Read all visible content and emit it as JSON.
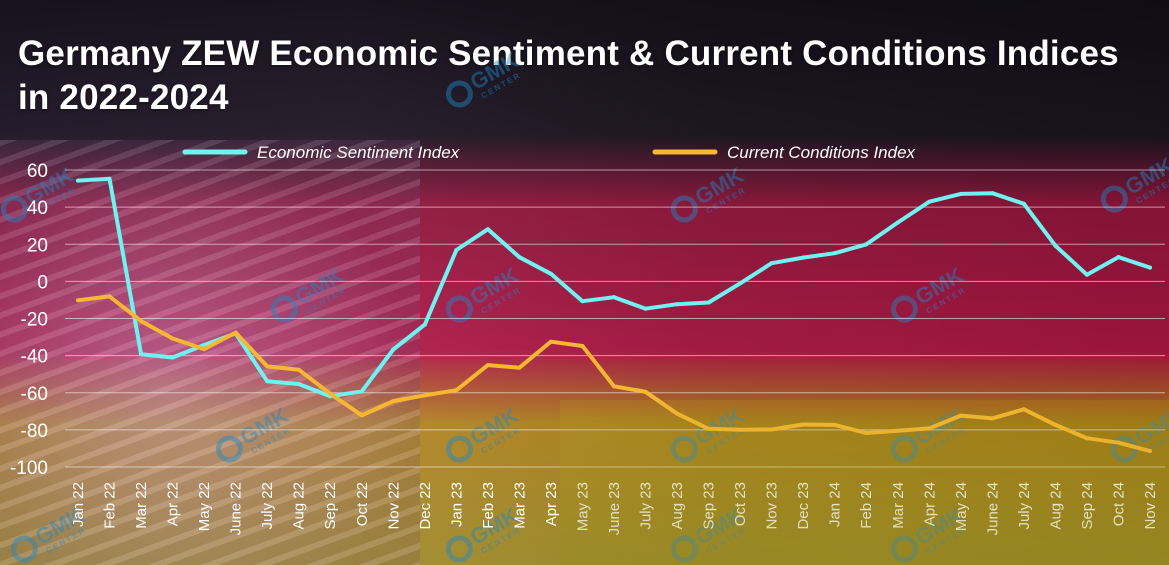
{
  "chart_data": {
    "type": "line",
    "title": "Germany ZEW Economic Sentiment & Current Conditions Indices in 2022-2024",
    "categories": [
      "Jan 22",
      "Feb 22",
      "Mar 22",
      "Apr 22",
      "May 22",
      "June 22",
      "July 22",
      "Aug 22",
      "Sep 22",
      "Oct 22",
      "Nov 22",
      "Dec 22",
      "Jan 23",
      "Feb 23",
      "Mar 23",
      "Apr 23",
      "May 23",
      "June 23",
      "July 23",
      "Aug 23",
      "Sep 23",
      "Oct 23",
      "Nov 23",
      "Dec 23",
      "Jan 24",
      "Feb 24",
      "Mar 24",
      "Apr 24",
      "May 24",
      "June 24",
      "July 24",
      "Aug 24",
      "Sep 24",
      "Oct 24",
      "Nov 24"
    ],
    "series": [
      {
        "name": "Economic Sentiment Index",
        "color": "#6ff3f0",
        "values": [
          54.3,
          55.3,
          -39.3,
          -41.0,
          -34.3,
          -28.0,
          -53.8,
          -55.3,
          -61.9,
          -59.2,
          -36.7,
          -23.3,
          16.9,
          28.1,
          13.0,
          4.1,
          -10.7,
          -8.5,
          -14.7,
          -12.3,
          -11.4,
          -1.1,
          9.8,
          12.8,
          15.2,
          19.9,
          31.7,
          42.9,
          47.1,
          47.5,
          41.8,
          19.2,
          3.6,
          13.1,
          7.4
        ]
      },
      {
        "name": "Current Conditions Index",
        "color": "#f7b731",
        "values": [
          -10.2,
          -8.1,
          -21.4,
          -30.8,
          -36.5,
          -27.6,
          -45.8,
          -47.6,
          -60.5,
          -72.2,
          -64.5,
          -61.4,
          -58.6,
          -45.1,
          -46.5,
          -32.5,
          -34.8,
          -56.5,
          -59.5,
          -71.3,
          -79.4,
          -79.9,
          -79.8,
          -77.1,
          -77.3,
          -81.7,
          -80.5,
          -79.2,
          -72.3,
          -73.8,
          -68.9,
          -77.3,
          -84.5,
          -86.9,
          -91.4
        ]
      }
    ],
    "yticks": [
      60,
      40,
      20,
      0,
      -20,
      -40,
      -60,
      -80,
      -100
    ],
    "ylim": [
      -100,
      60
    ],
    "xlabel": "",
    "ylabel": "",
    "legend_position": "top-center"
  },
  "watermark": {
    "text": "GMK",
    "subtext": "CENTER"
  }
}
